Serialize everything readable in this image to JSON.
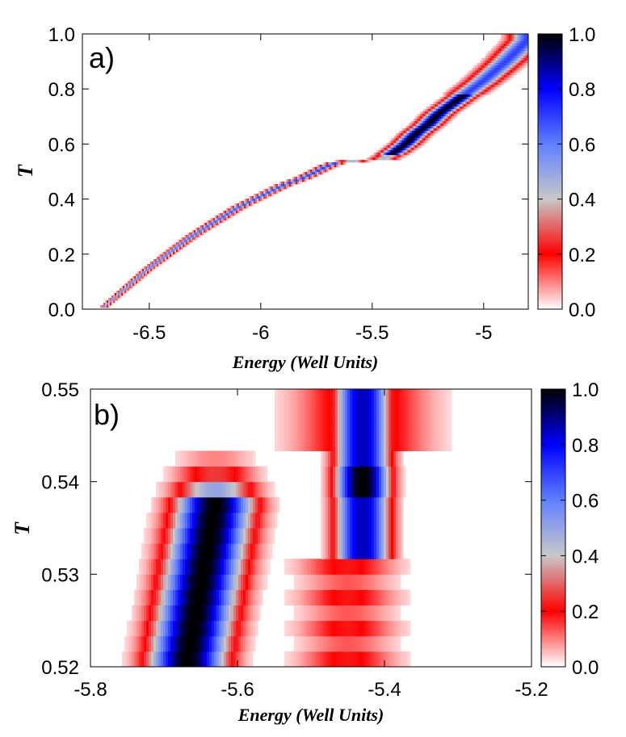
{
  "chart_data": [
    {
      "type": "heatmap",
      "panel_label": "a)",
      "xlabel": "Energy (Well Units)",
      "ylabel": "T",
      "xlim": [
        -6.8,
        -4.8
      ],
      "ylim": [
        0.0,
        1.0
      ],
      "xticks": [
        "-6.5",
        "-6",
        "-5.5",
        "-5"
      ],
      "yticks": [
        "0.0",
        "0.2",
        "0.4",
        "0.6",
        "0.8",
        "1.0"
      ],
      "colorbar": {
        "range": [
          0.0,
          1.0
        ],
        "ticks": [
          "0.0",
          "0.2",
          "0.4",
          "0.6",
          "0.8",
          "1.0"
        ]
      },
      "ridge_points": [
        {
          "x": -6.7,
          "y": 0.01
        },
        {
          "x": -6.6,
          "y": 0.08
        },
        {
          "x": -6.5,
          "y": 0.15
        },
        {
          "x": -6.4,
          "y": 0.21
        },
        {
          "x": -6.3,
          "y": 0.27
        },
        {
          "x": -6.2,
          "y": 0.32
        },
        {
          "x": -6.1,
          "y": 0.37
        },
        {
          "x": -6.0,
          "y": 0.41
        },
        {
          "x": -5.9,
          "y": 0.45
        },
        {
          "x": -5.8,
          "y": 0.48
        },
        {
          "x": -5.7,
          "y": 0.52
        },
        {
          "x": -5.65,
          "y": 0.535
        },
        {
          "x": -5.55,
          "y": 0.54
        },
        {
          "x": -5.45,
          "y": 0.545
        },
        {
          "x": -5.4,
          "y": 0.57
        },
        {
          "x": -5.35,
          "y": 0.6
        },
        {
          "x": -5.3,
          "y": 0.64
        },
        {
          "x": -5.25,
          "y": 0.67
        },
        {
          "x": -5.2,
          "y": 0.71
        },
        {
          "x": -5.15,
          "y": 0.74
        },
        {
          "x": -5.1,
          "y": 0.77
        },
        {
          "x": -5.0,
          "y": 0.83
        },
        {
          "x": -4.9,
          "y": 0.9
        },
        {
          "x": -4.8,
          "y": 0.98
        }
      ]
    },
    {
      "type": "heatmap",
      "panel_label": "b)",
      "xlabel": "Energy (Well Units)",
      "ylabel": "T",
      "xlim": [
        -5.8,
        -5.2
      ],
      "ylim": [
        0.52,
        0.55
      ],
      "xticks": [
        "-5.8",
        "-5.6",
        "-5.4",
        "-5.2"
      ],
      "yticks": [
        "0.52",
        "0.53",
        "0.54",
        "0.55"
      ],
      "colorbar": {
        "range": [
          0.0,
          1.0
        ],
        "ticks": [
          "0.0",
          "0.2",
          "0.4",
          "0.6",
          "0.8",
          "1.0"
        ]
      },
      "low_branch": {
        "x_at_ymin": -5.67,
        "x_at_ymax": -5.63,
        "y_top": 0.5378,
        "y_fade_top": 0.5435
      },
      "high_branch": {
        "x_center": -5.43,
        "y_bottom": 0.531,
        "y_top": 0.55
      }
    }
  ]
}
